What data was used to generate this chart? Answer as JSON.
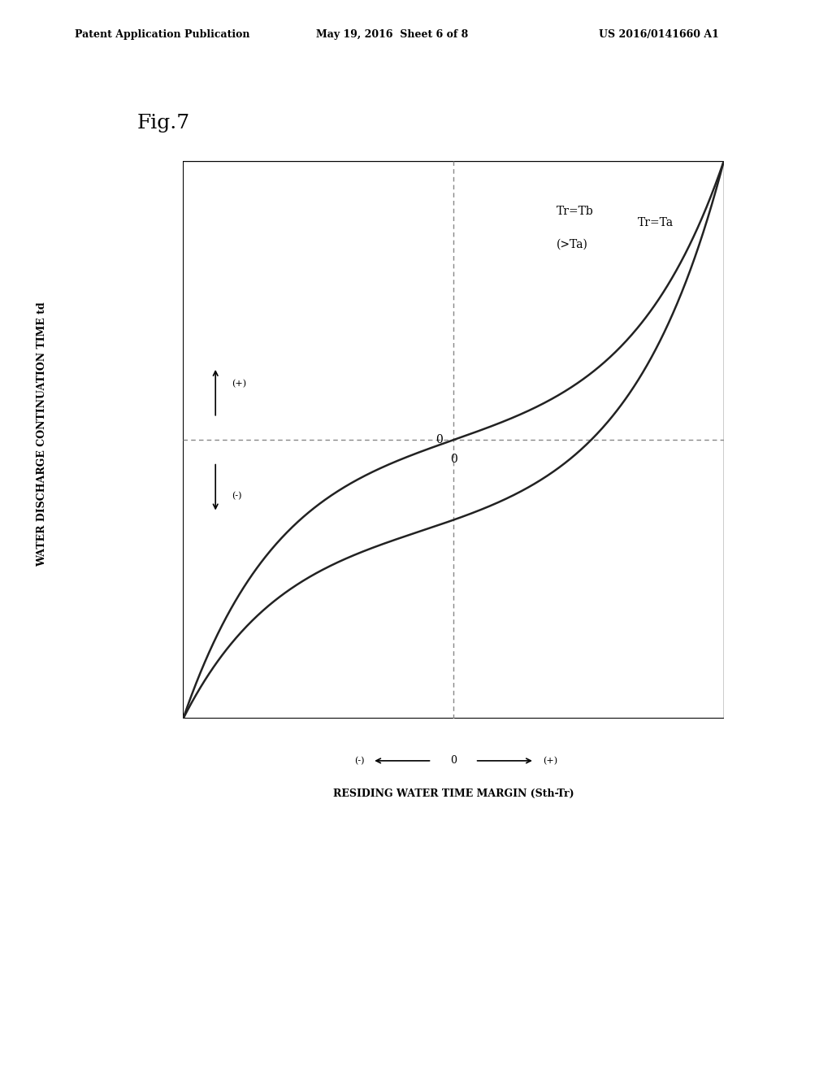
{
  "fig_label": "Fig.7",
  "header_left": "Patent Application Publication",
  "header_center": "May 19, 2016  Sheet 6 of 8",
  "header_right": "US 2016/0141660 A1",
  "xlabel": "RESIDING WATER TIME MARGIN (Sth-Tr)",
  "ylabel": "WATER DISCHARGE CONTINUATION TIME td",
  "curve1_label_line1": "Tr=Tb",
  "curve1_label_line2": "(>Ta)",
  "curve2_label": "Tr=Ta",
  "background_color": "#ffffff",
  "axis_color": "#000000",
  "dashed_color": "#888888",
  "curve_color": "#222222",
  "font_size_header": 9,
  "font_size_fig": 18,
  "font_size_axis_label": 9,
  "font_size_curve_label": 10
}
